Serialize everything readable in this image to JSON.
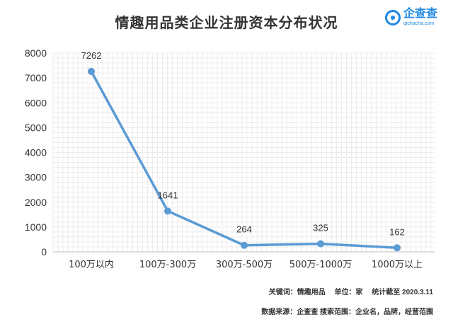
{
  "title": "情趣用品类企业注册资本分布状况",
  "logo": {
    "name": "企查查",
    "url": "qichacha.com"
  },
  "chart_data": {
    "type": "line",
    "categories": [
      "100万以内",
      "100万-300万",
      "300万-500万",
      "500万-1000万",
      "1000万以上"
    ],
    "values": [
      7262,
      1641,
      264,
      325,
      162
    ],
    "ylim": [
      0,
      8000
    ],
    "yticks": [
      0,
      1000,
      2000,
      3000,
      4000,
      5000,
      6000,
      7000,
      8000
    ],
    "grid": true,
    "color": "#5b9bd5"
  },
  "footer": {
    "keyword": "关键词：情趣用品",
    "unit": "单位：家",
    "date": "统计截至 2020.3.11",
    "source": "数据来源：企查查  搜索范围：企业名，品牌，经营范围"
  }
}
